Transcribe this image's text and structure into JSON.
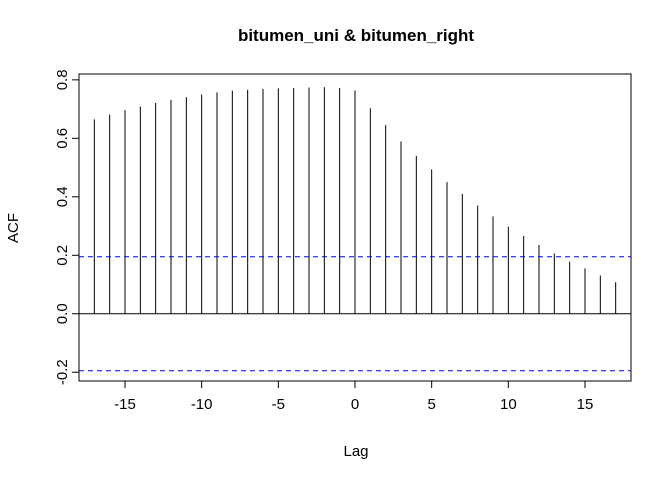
{
  "chart_data": {
    "type": "bar",
    "title": "bitumen_uni & bitumen_right",
    "xlabel": "Lag",
    "ylabel": "ACF",
    "x": [
      -17,
      -16,
      -15,
      -14,
      -13,
      -12,
      -11,
      -10,
      -9,
      -8,
      -7,
      -6,
      -5,
      -4,
      -3,
      -2,
      -1,
      0,
      1,
      2,
      3,
      4,
      5,
      6,
      7,
      8,
      9,
      10,
      11,
      12,
      13,
      14,
      15,
      16,
      17
    ],
    "values": [
      0.665,
      0.681,
      0.697,
      0.709,
      0.721,
      0.731,
      0.741,
      0.75,
      0.757,
      0.763,
      0.766,
      0.769,
      0.771,
      0.772,
      0.774,
      0.775,
      0.772,
      0.764,
      0.703,
      0.645,
      0.589,
      0.54,
      0.494,
      0.45,
      0.41,
      0.37,
      0.333,
      0.298,
      0.266,
      0.235,
      0.206,
      0.178,
      0.155,
      0.131,
      0.108
    ],
    "xlim": [
      -18,
      18
    ],
    "ylim": [
      -0.23,
      0.82
    ],
    "x_ticks": [
      -15,
      -10,
      -5,
      0,
      5,
      10,
      15
    ],
    "x_tick_labels": [
      "-15",
      "-10",
      "-5",
      "0",
      "5",
      "10",
      "15"
    ],
    "y_ticks": [
      -0.2,
      0.0,
      0.2,
      0.4,
      0.6,
      0.8
    ],
    "y_tick_labels": [
      "-0.2",
      "0.0",
      "0.2",
      "0.4",
      "0.6",
      "0.8"
    ],
    "confidence_band": 0.195,
    "zero_line": 0,
    "grid": false,
    "colors": {
      "bars": "#000000",
      "confidence_band": "#0000ff",
      "axes": "#000000"
    }
  }
}
